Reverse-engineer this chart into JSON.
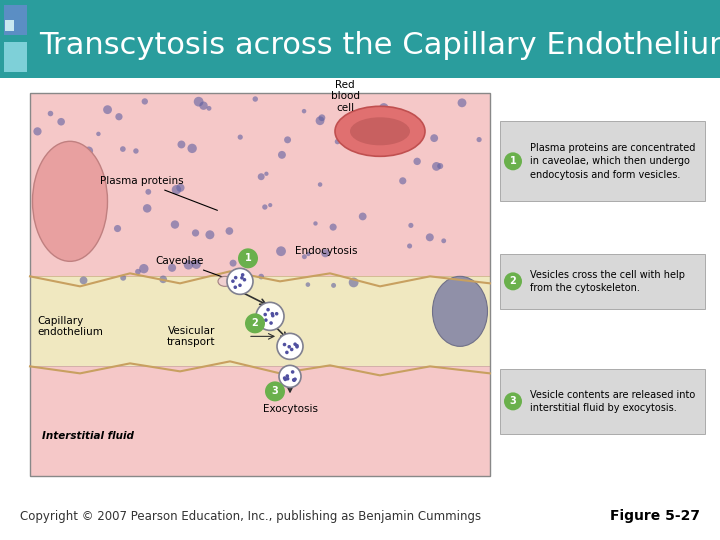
{
  "title": "Transcytosis across the Capillary Endothelium",
  "title_bg_color": "#2a9d9d",
  "title_text_color": "#ffffff",
  "title_fontsize": 22,
  "body_bg_color": "#ffffff",
  "copyright_text": "Copyright © 2007 Pearson Education, Inc., publishing as Benjamin Cummings",
  "figure_label": "Figure 5-27",
  "copyright_fontsize": 8.5,
  "figure_label_fontsize": 10,
  "accent_color1": "#5b8ec4",
  "accent_color2": "#7ed0d8",
  "accent_color3": "#c8e8f0",
  "green_circle_color": "#6ab04c",
  "step_box_bg": "#d8d8d8",
  "pink_top_color": "#f5c8c8",
  "pink_top_edge": "#c8a0a0",
  "endo_color": "#f0e8c0",
  "endo_edge": "#c8b080",
  "pink_bot_color": "#f5c8c8",
  "dot_color": "#6060a0",
  "rbc_color": "#e07070",
  "rbc_edge": "#c05050",
  "rbc_inner": "#c86060",
  "cell_blob_color": "#e8a0a0",
  "cell_blob_edge": "#c08080",
  "gray_blob_color": "#9090a8",
  "gray_blob_edge": "#707088",
  "vesicle_dot_color": "#5050a0",
  "vesicle_outline": "#808090",
  "cav_color": "#f0d0d0",
  "cav_edge": "#a08080",
  "wavy_color": "#c8a060",
  "steps": [
    {
      "number": "1",
      "text": "Plasma proteins are concentrated\nin caveolae, which then undergo\nendocytosis and form vesicles."
    },
    {
      "number": "2",
      "text": "Vesicles cross the cell with help\nfrom the cytoskeleton."
    },
    {
      "number": "3",
      "text": "Vesicle contents are released into\ninterstitial fluid by exocytosis."
    }
  ]
}
